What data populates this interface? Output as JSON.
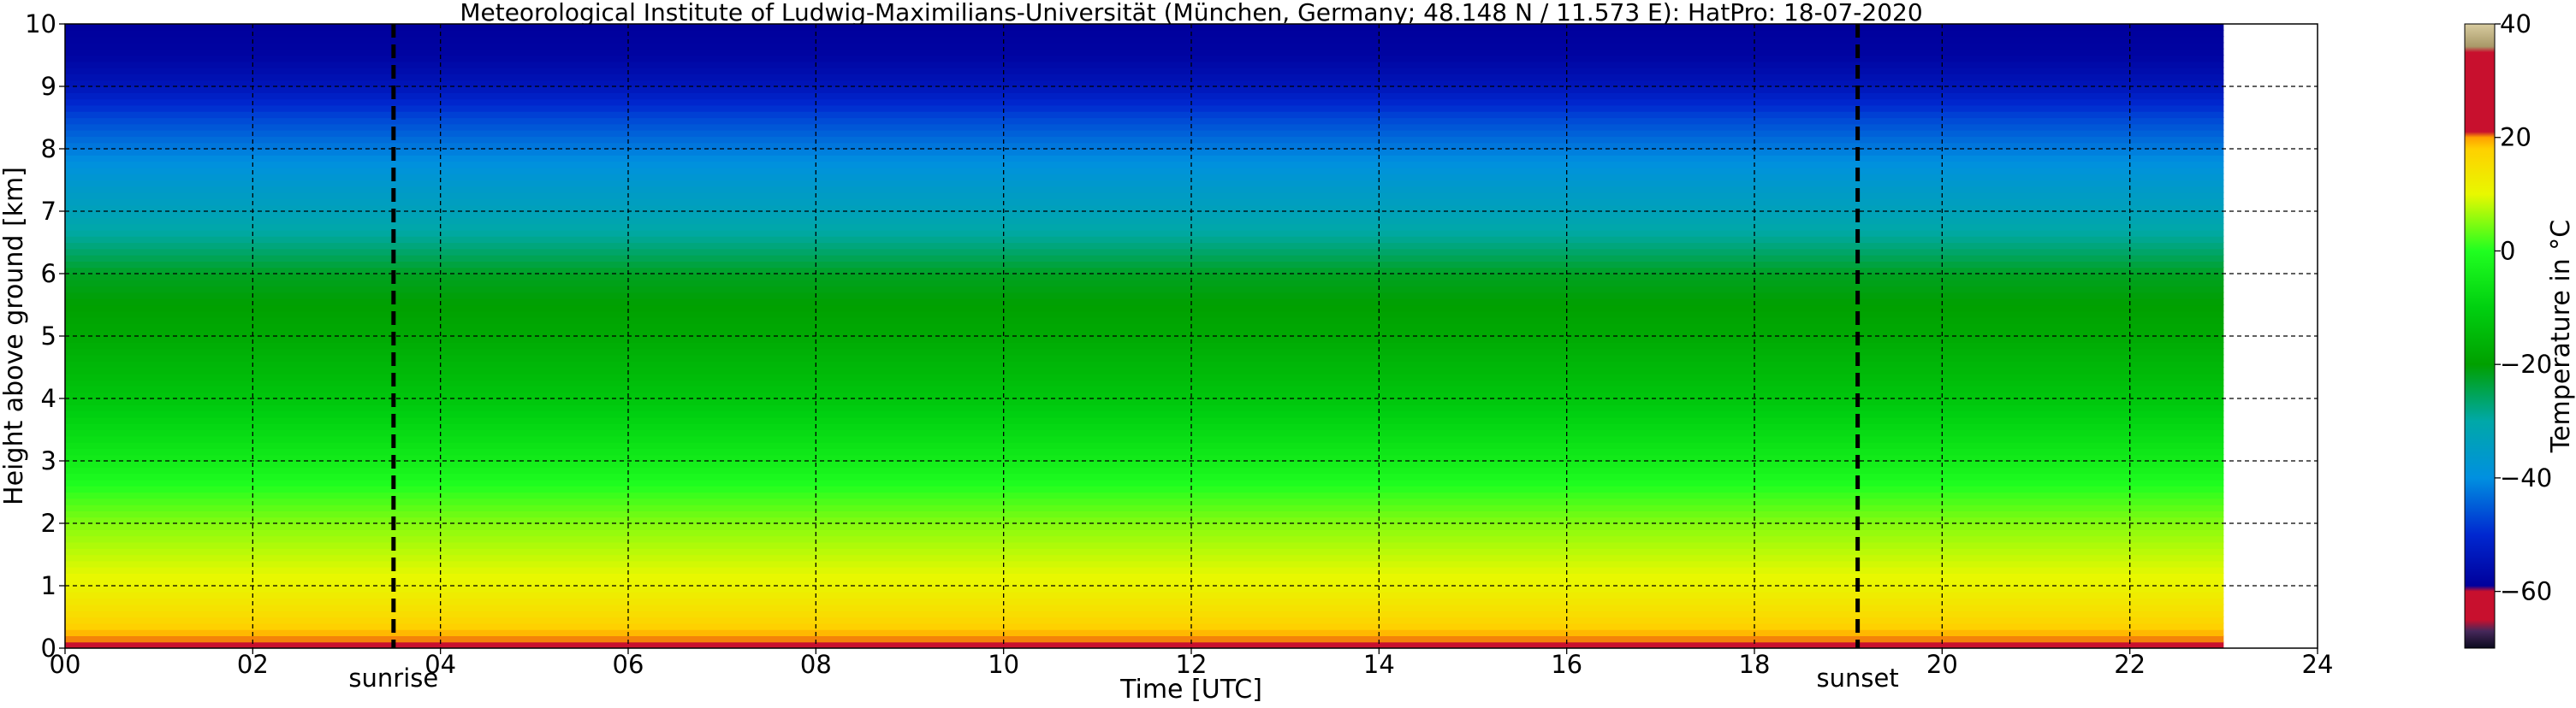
{
  "chart_data": {
    "type": "heatmap",
    "title": "Meteorological Institute of Ludwig-Maximilians-Universität (München, Germany; 48.148 N / 11.573 E):    HatPro: 18-07-2020",
    "xlabel": "Time [UTC]",
    "ylabel": "Height above ground [km]",
    "xlim": [
      0,
      24
    ],
    "ylim": [
      0,
      10
    ],
    "x_ticks": [
      "00",
      "02",
      "04",
      "06",
      "08",
      "10",
      "12",
      "14",
      "16",
      "18",
      "20",
      "22",
      "24"
    ],
    "y_ticks": [
      "0",
      "1",
      "2",
      "3",
      "4",
      "5",
      "6",
      "7",
      "8",
      "9",
      "10"
    ],
    "grid": true,
    "data_x_range": [
      0,
      23
    ],
    "annotations": [
      {
        "label": "sunrise",
        "x": 3.5
      },
      {
        "label": "sunset",
        "x": 19.1
      }
    ],
    "colorbar": {
      "label": "Temperature in $^\\circ$C",
      "ticks": [
        "40",
        "20",
        "0",
        "−20",
        "−40",
        "−60"
      ],
      "range": [
        -70,
        40
      ],
      "stops": [
        {
          "value": -70,
          "color": "#0a0a1e"
        },
        {
          "value": -67,
          "color": "#46285a"
        },
        {
          "value": -65,
          "color": "#c8102e"
        },
        {
          "value": -60,
          "color": "#c8102e"
        },
        {
          "value": -59,
          "color": "#00009c"
        },
        {
          "value": -50,
          "color": "#0028d0"
        },
        {
          "value": -40,
          "color": "#0090e0"
        },
        {
          "value": -30,
          "color": "#00a8a8"
        },
        {
          "value": -20,
          "color": "#00a000"
        },
        {
          "value": -10,
          "color": "#00d010"
        },
        {
          "value": 0,
          "color": "#20ff20"
        },
        {
          "value": 10,
          "color": "#e8f800"
        },
        {
          "value": 18,
          "color": "#ffd000"
        },
        {
          "value": 20,
          "color": "#ffa000"
        },
        {
          "value": 21,
          "color": "#c8102e"
        },
        {
          "value": 35,
          "color": "#c8102e"
        },
        {
          "value": 36,
          "color": "#a89868"
        },
        {
          "value": 40,
          "color": "#d8cca0"
        }
      ]
    },
    "profile": {
      "heights_km": [
        0,
        0.5,
        1,
        1.5,
        2,
        2.5,
        3,
        3.5,
        4,
        4.5,
        5,
        5.5,
        6,
        6.5,
        7,
        7.5,
        8,
        8.5,
        9,
        9.5,
        10
      ],
      "temperature_c": [
        22,
        16,
        11,
        8,
        5,
        1,
        -4,
        -8,
        -12,
        -15,
        -18,
        -20,
        -22,
        -28,
        -33,
        -37,
        -42,
        -47,
        -54,
        -58,
        -59
      ]
    }
  }
}
